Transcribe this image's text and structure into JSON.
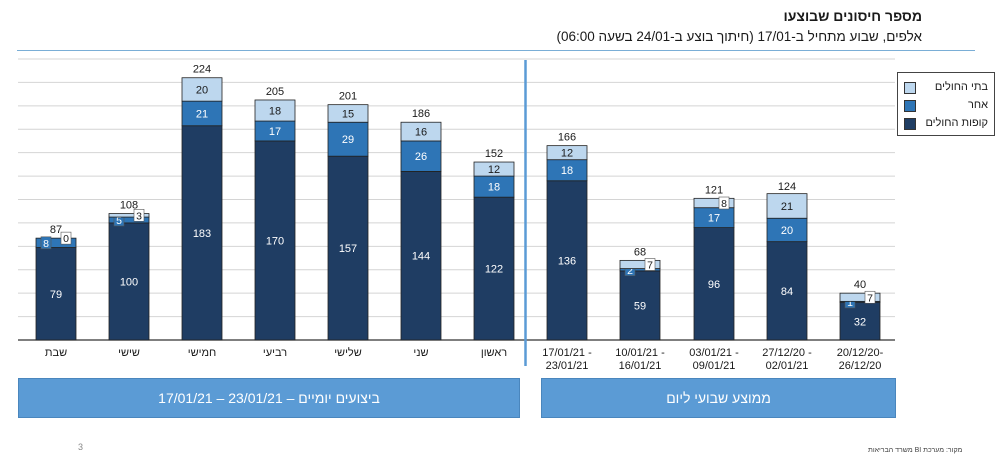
{
  "header": {
    "title": "מספר חיסונים שבוצעו",
    "subtitle": "אלפים, שבוע מתחיל ב-17/01 (חיתוך בוצע ב-24/01 בשעה 06:00)"
  },
  "chart_data": {
    "type": "bar",
    "stacked": true,
    "unit": "thousands",
    "categories": [
      "שבת",
      "שישי",
      "חמישי",
      "רביעי",
      "שלישי",
      "שני",
      "ראשון",
      "17/01/21 - 23/01/21",
      "10/01/21 - 16/01/21",
      "03/01/21 - 09/01/21",
      "27/12/20 - 02/01/21",
      "20/12/20- 26/12/20"
    ],
    "series": [
      {
        "name": "קופות החולים",
        "color": "#1f3d63",
        "values": [
          79,
          100,
          183,
          170,
          157,
          144,
          122,
          136,
          59,
          96,
          84,
          32
        ]
      },
      {
        "name": "אחר",
        "color": "#2e75b6",
        "values": [
          8,
          5,
          21,
          17,
          29,
          26,
          18,
          18,
          2,
          17,
          20,
          1
        ]
      },
      {
        "name": "בתי החולים",
        "color": "#bdd7ee",
        "values": [
          0,
          3,
          20,
          18,
          15,
          16,
          12,
          12,
          7,
          8,
          21,
          7
        ]
      }
    ],
    "totals": [
      87,
      108,
      224,
      205,
      201,
      186,
      152,
      166,
      68,
      121,
      124,
      40
    ],
    "ylim": [
      0,
      240
    ],
    "grid": true,
    "legend_position": "top-right",
    "groups": [
      {
        "label": "ביצועים יומיים – 23/01/21 – 17/01/21",
        "category_count": 7
      },
      {
        "label": "ממוצע שבועי ליום",
        "category_count": 5
      }
    ]
  },
  "legend": {
    "hospitals": {
      "label": "בתי החולים",
      "color": "#bdd7ee"
    },
    "other": {
      "label": "אחר",
      "color": "#2e75b6"
    },
    "hmos": {
      "label": "קופות החולים",
      "color": "#1f3d63"
    }
  },
  "footer": {
    "page_number": "3",
    "source": "מקור: מערכת BI משרד הבריאות"
  }
}
